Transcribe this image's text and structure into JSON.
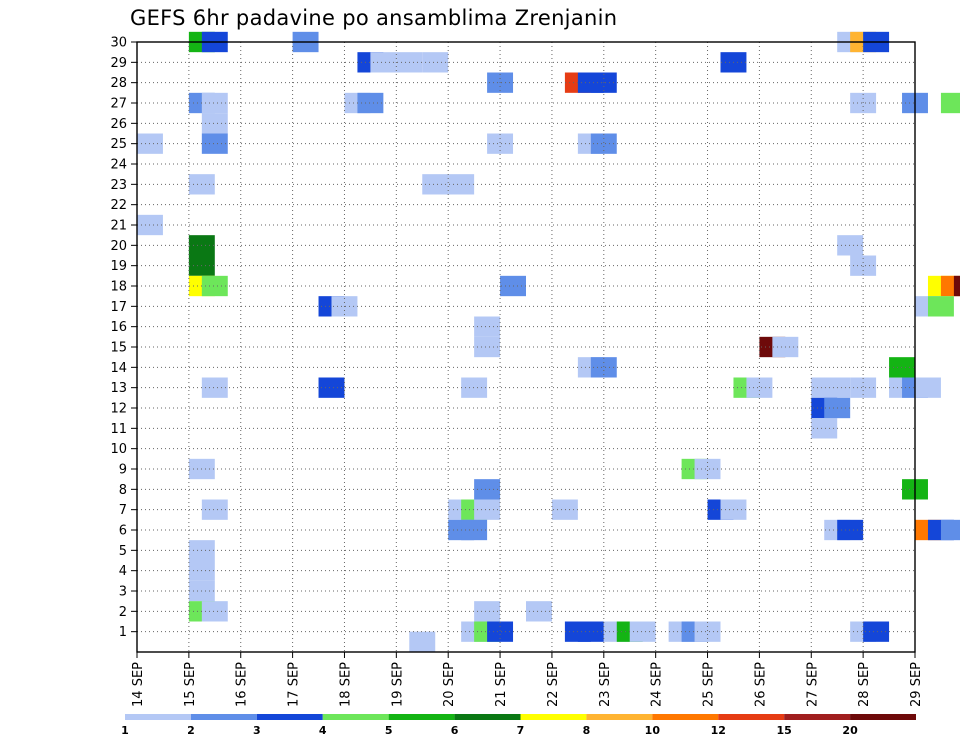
{
  "chart_data": {
    "type": "heatmap",
    "title": "GEFS 6hr padavine po ansamblima Zrenjanin",
    "x_ticks": [
      "14 SEP",
      "15 SEP",
      "16 SEP",
      "17 SEP",
      "18 SEP",
      "19 SEP",
      "20 SEP",
      "21 SEP",
      "22 SEP",
      "23 SEP",
      "24 SEP",
      "25 SEP",
      "26 SEP",
      "27 SEP",
      "28 SEP",
      "29 SEP"
    ],
    "y_ticks": [
      1,
      2,
      3,
      4,
      5,
      6,
      7,
      8,
      9,
      10,
      11,
      12,
      13,
      14,
      15,
      16,
      17,
      18,
      19,
      20,
      21,
      22,
      23,
      24,
      25,
      26,
      27,
      28,
      29,
      30
    ],
    "x_range": [
      "14 SEP",
      "29 SEP"
    ],
    "y_range": [
      0,
      30
    ],
    "grid": true,
    "colorbar": {
      "labels": [
        "1",
        "2",
        "3",
        "4",
        "5",
        "6",
        "7",
        "8",
        "10",
        "12",
        "15",
        "20"
      ],
      "colors": [
        "#b4c8f5",
        "#5f8ee8",
        "#1446d8",
        "#6de65a",
        "#14b414",
        "#0a7814",
        "#ffff00",
        "#ffb432",
        "#ff7800",
        "#e63c14",
        "#a01e1e",
        "#6e0a0a"
      ],
      "legend_position": "bottom"
    },
    "cells": [
      {
        "t": 2.5,
        "m": 30,
        "c": 4
      },
      {
        "t": 3,
        "m": 30,
        "c": 2
      },
      {
        "t": 6.5,
        "m": 30,
        "c": 1
      },
      {
        "t": 27.5,
        "m": 30,
        "c": 0
      },
      {
        "t": 28,
        "m": 30,
        "c": 7
      },
      {
        "t": 28.5,
        "m": 30,
        "c": 2
      },
      {
        "t": 9,
        "m": 29,
        "c": 2
      },
      {
        "t": 9.5,
        "m": 29,
        "c": 0
      },
      {
        "t": 10.5,
        "m": 29,
        "c": 0
      },
      {
        "t": 11.5,
        "m": 29,
        "c": 0
      },
      {
        "t": 23,
        "m": 29,
        "c": 2
      },
      {
        "t": 14,
        "m": 28,
        "c": 1
      },
      {
        "t": 17,
        "m": 28,
        "c": 9
      },
      {
        "t": 17.5,
        "m": 28,
        "c": 2
      },
      {
        "t": 18,
        "m": 28,
        "c": 2
      },
      {
        "t": 2.5,
        "m": 27,
        "c": 1
      },
      {
        "t": 3,
        "m": 27,
        "c": 0
      },
      {
        "t": 8.5,
        "m": 27,
        "c": 0
      },
      {
        "t": 9,
        "m": 27,
        "c": 1
      },
      {
        "t": 28,
        "m": 27,
        "c": 0
      },
      {
        "t": 30,
        "m": 27,
        "c": 1
      },
      {
        "t": 31.5,
        "m": 27,
        "c": 3
      },
      {
        "t": 33,
        "m": 27,
        "c": 1
      },
      {
        "t": 33.5,
        "m": 27,
        "c": 7
      },
      {
        "t": 3,
        "m": 26,
        "c": 0
      },
      {
        "t": 0.5,
        "m": 25,
        "c": 0
      },
      {
        "t": 3,
        "m": 25,
        "c": 1
      },
      {
        "t": 14,
        "m": 25,
        "c": 0
      },
      {
        "t": 17.5,
        "m": 25,
        "c": 0
      },
      {
        "t": 18,
        "m": 25,
        "c": 1
      },
      {
        "t": 2.5,
        "m": 23,
        "c": 0
      },
      {
        "t": 11.5,
        "m": 23,
        "c": 0
      },
      {
        "t": 12.5,
        "m": 23,
        "c": 0
      },
      {
        "t": 32.5,
        "m": 23,
        "c": 0
      },
      {
        "t": 33,
        "m": 23,
        "c": 2
      },
      {
        "t": 0.5,
        "m": 21,
        "c": 0
      },
      {
        "t": 2.5,
        "m": 20,
        "c": 5
      },
      {
        "t": 27.5,
        "m": 20,
        "c": 0
      },
      {
        "t": 33.5,
        "m": 20,
        "c": 3
      },
      {
        "t": 34,
        "m": 20,
        "c": 7
      },
      {
        "t": 2.5,
        "m": 19,
        "c": 5
      },
      {
        "t": 28,
        "m": 19,
        "c": 0
      },
      {
        "t": 2.5,
        "m": 18,
        "c": 6
      },
      {
        "t": 3,
        "m": 18,
        "c": 3
      },
      {
        "t": 14.5,
        "m": 18,
        "c": 1
      },
      {
        "t": 31,
        "m": 18,
        "c": 6
      },
      {
        "t": 31.5,
        "m": 18,
        "c": 8
      },
      {
        "t": 32,
        "m": 18,
        "c": 11
      },
      {
        "t": 32.5,
        "m": 18,
        "c": 0
      },
      {
        "t": 7.5,
        "m": 17,
        "c": 2
      },
      {
        "t": 8,
        "m": 17,
        "c": 0
      },
      {
        "t": 30.5,
        "m": 17,
        "c": 0
      },
      {
        "t": 31,
        "m": 17,
        "c": 3
      },
      {
        "t": 33.5,
        "m": 17,
        "c": 0
      },
      {
        "t": 13.5,
        "m": 16,
        "c": 0
      },
      {
        "t": 13.5,
        "m": 15,
        "c": 0
      },
      {
        "t": 24.5,
        "m": 15,
        "c": 11
      },
      {
        "t": 25,
        "m": 15,
        "c": 0
      },
      {
        "t": 17.5,
        "m": 14,
        "c": 0
      },
      {
        "t": 18,
        "m": 14,
        "c": 1
      },
      {
        "t": 29.5,
        "m": 14,
        "c": 4
      },
      {
        "t": 3,
        "m": 13,
        "c": 0
      },
      {
        "t": 7.5,
        "m": 13,
        "c": 2
      },
      {
        "t": 13,
        "m": 13,
        "c": 0
      },
      {
        "t": 23.5,
        "m": 13,
        "c": 3
      },
      {
        "t": 24,
        "m": 13,
        "c": 0
      },
      {
        "t": 26.5,
        "m": 13,
        "c": 0
      },
      {
        "t": 27,
        "m": 13,
        "c": 0
      },
      {
        "t": 28,
        "m": 13,
        "c": 0
      },
      {
        "t": 29.5,
        "m": 13,
        "c": 0
      },
      {
        "t": 30,
        "m": 13,
        "c": 1
      },
      {
        "t": 30.5,
        "m": 13,
        "c": 0
      },
      {
        "t": 26.5,
        "m": 12,
        "c": 2
      },
      {
        "t": 27,
        "m": 12,
        "c": 1
      },
      {
        "t": 26.5,
        "m": 11,
        "c": 0
      },
      {
        "t": 2.5,
        "m": 9,
        "c": 0
      },
      {
        "t": 21.5,
        "m": 9,
        "c": 3
      },
      {
        "t": 22,
        "m": 9,
        "c": 0
      },
      {
        "t": 13.5,
        "m": 8,
        "c": 1
      },
      {
        "t": 30,
        "m": 8,
        "c": 4
      },
      {
        "t": 3,
        "m": 7,
        "c": 0
      },
      {
        "t": 12.5,
        "m": 7,
        "c": 0
      },
      {
        "t": 13,
        "m": 7,
        "c": 3
      },
      {
        "t": 13.5,
        "m": 7,
        "c": 0
      },
      {
        "t": 16.5,
        "m": 7,
        "c": 0
      },
      {
        "t": 22.5,
        "m": 7,
        "c": 2
      },
      {
        "t": 23,
        "m": 7,
        "c": 0
      },
      {
        "t": 12.5,
        "m": 6,
        "c": 1
      },
      {
        "t": 13,
        "m": 6,
        "c": 1
      },
      {
        "t": 27,
        "m": 6,
        "c": 0
      },
      {
        "t": 27.5,
        "m": 6,
        "c": 2
      },
      {
        "t": 30.5,
        "m": 6,
        "c": 8
      },
      {
        "t": 31,
        "m": 6,
        "c": 2
      },
      {
        "t": 31.5,
        "m": 6,
        "c": 1
      },
      {
        "t": 32.5,
        "m": 6,
        "c": 3
      },
      {
        "t": 33,
        "m": 6,
        "c": 1
      },
      {
        "t": 2.5,
        "m": 5,
        "c": 0
      },
      {
        "t": 2.5,
        "m": 4,
        "c": 0
      },
      {
        "t": 2.5,
        "m": 3,
        "c": 0
      },
      {
        "t": 2.5,
        "m": 2,
        "c": 3
      },
      {
        "t": 3,
        "m": 2,
        "c": 0
      },
      {
        "t": 13.5,
        "m": 2,
        "c": 0
      },
      {
        "t": 15.5,
        "m": 2,
        "c": 0
      },
      {
        "t": 13,
        "m": 1,
        "c": 0
      },
      {
        "t": 13.5,
        "m": 1,
        "c": 3
      },
      {
        "t": 14,
        "m": 1,
        "c": 2
      },
      {
        "t": 17,
        "m": 1,
        "c": 2
      },
      {
        "t": 17.5,
        "m": 1,
        "c": 2
      },
      {
        "t": 18.5,
        "m": 1,
        "c": 0
      },
      {
        "t": 19,
        "m": 1,
        "c": 4
      },
      {
        "t": 19.5,
        "m": 1,
        "c": 0
      },
      {
        "t": 21,
        "m": 1,
        "c": 0
      },
      {
        "t": 21.5,
        "m": 1,
        "c": 1
      },
      {
        "t": 22,
        "m": 1,
        "c": 0
      },
      {
        "t": 28,
        "m": 1,
        "c": 0
      },
      {
        "t": 28.5,
        "m": 1,
        "c": 2
      },
      {
        "t": 11,
        "m": 0.5,
        "c": 0
      }
    ]
  }
}
